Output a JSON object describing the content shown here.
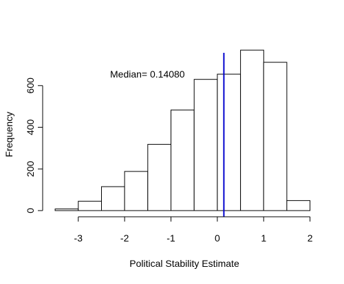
{
  "chart_data": {
    "type": "bar",
    "title": "",
    "xlabel": "Political Stability Estimate",
    "ylabel": "Frequency",
    "bins": [
      {
        "start": -3.5,
        "end": -3.0,
        "count": 8
      },
      {
        "start": -3.0,
        "end": -2.5,
        "count": 45
      },
      {
        "start": -2.5,
        "end": -2.0,
        "count": 115
      },
      {
        "start": -2.0,
        "end": -1.5,
        "count": 188
      },
      {
        "start": -1.5,
        "end": -1.0,
        "count": 318
      },
      {
        "start": -1.0,
        "end": -0.5,
        "count": 483
      },
      {
        "start": -0.5,
        "end": 0.0,
        "count": 630
      },
      {
        "start": 0.0,
        "end": 0.5,
        "count": 655
      },
      {
        "start": 0.5,
        "end": 1.0,
        "count": 770
      },
      {
        "start": 1.0,
        "end": 1.5,
        "count": 712
      },
      {
        "start": 1.5,
        "end": 2.0,
        "count": 48
      }
    ],
    "xlim": [
      -3.62,
      2.08
    ],
    "ylim": [
      0,
      810
    ],
    "xticks": [
      -3,
      -2,
      -1,
      0,
      1,
      2
    ],
    "xtick_labels": [
      "-3",
      "-2",
      "-1",
      "0",
      "1",
      "2"
    ],
    "yticks": [
      0,
      200,
      400,
      600
    ],
    "ytick_labels": [
      "0",
      "200",
      "400",
      "600"
    ],
    "median": {
      "value": 0.1408,
      "label": "Median= 0.14080",
      "color": "#0000cd"
    },
    "bar_fill": "#ffffff",
    "bar_stroke": "#000000",
    "grid": false
  }
}
